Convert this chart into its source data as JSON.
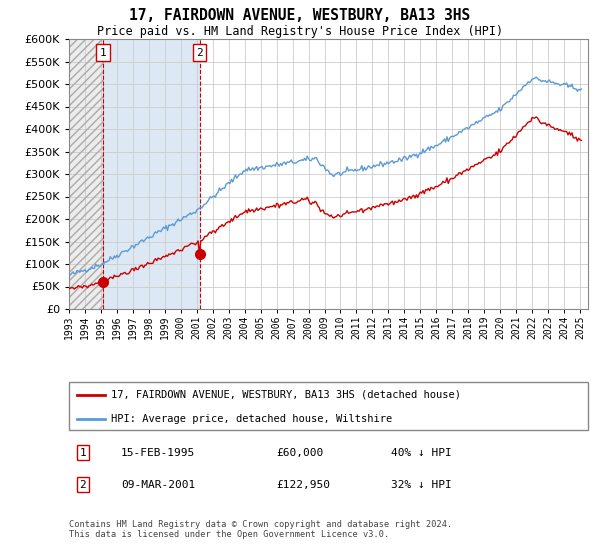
{
  "title": "17, FAIRDOWN AVENUE, WESTBURY, BA13 3HS",
  "subtitle": "Price paid vs. HM Land Registry's House Price Index (HPI)",
  "purchase1_date": "15-FEB-1995",
  "purchase1_price": 60000,
  "purchase1_label": "1",
  "purchase1_year": 1995.12,
  "purchase2_date": "09-MAR-2001",
  "purchase2_price": 122950,
  "purchase2_label": "2",
  "purchase2_year": 2001.19,
  "legend_line1": "17, FAIRDOWN AVENUE, WESTBURY, BA13 3HS (detached house)",
  "legend_line2": "HPI: Average price, detached house, Wiltshire",
  "footer": "Contains HM Land Registry data © Crown copyright and database right 2024.\nThis data is licensed under the Open Government Licence v3.0.",
  "hpi_color": "#5b9bd5",
  "price_color": "#cc0000",
  "purchase_dot_color": "#cc0000",
  "vline_color": "#cc0000",
  "shade_color": "#dce9f5",
  "ylim": [
    0,
    600000
  ],
  "yticks": [
    0,
    50000,
    100000,
    150000,
    200000,
    250000,
    300000,
    350000,
    400000,
    450000,
    500000,
    550000,
    600000
  ],
  "grid_color": "#cccccc",
  "bg_color": "#ffffff",
  "hatch_color": "#d0d0d0"
}
